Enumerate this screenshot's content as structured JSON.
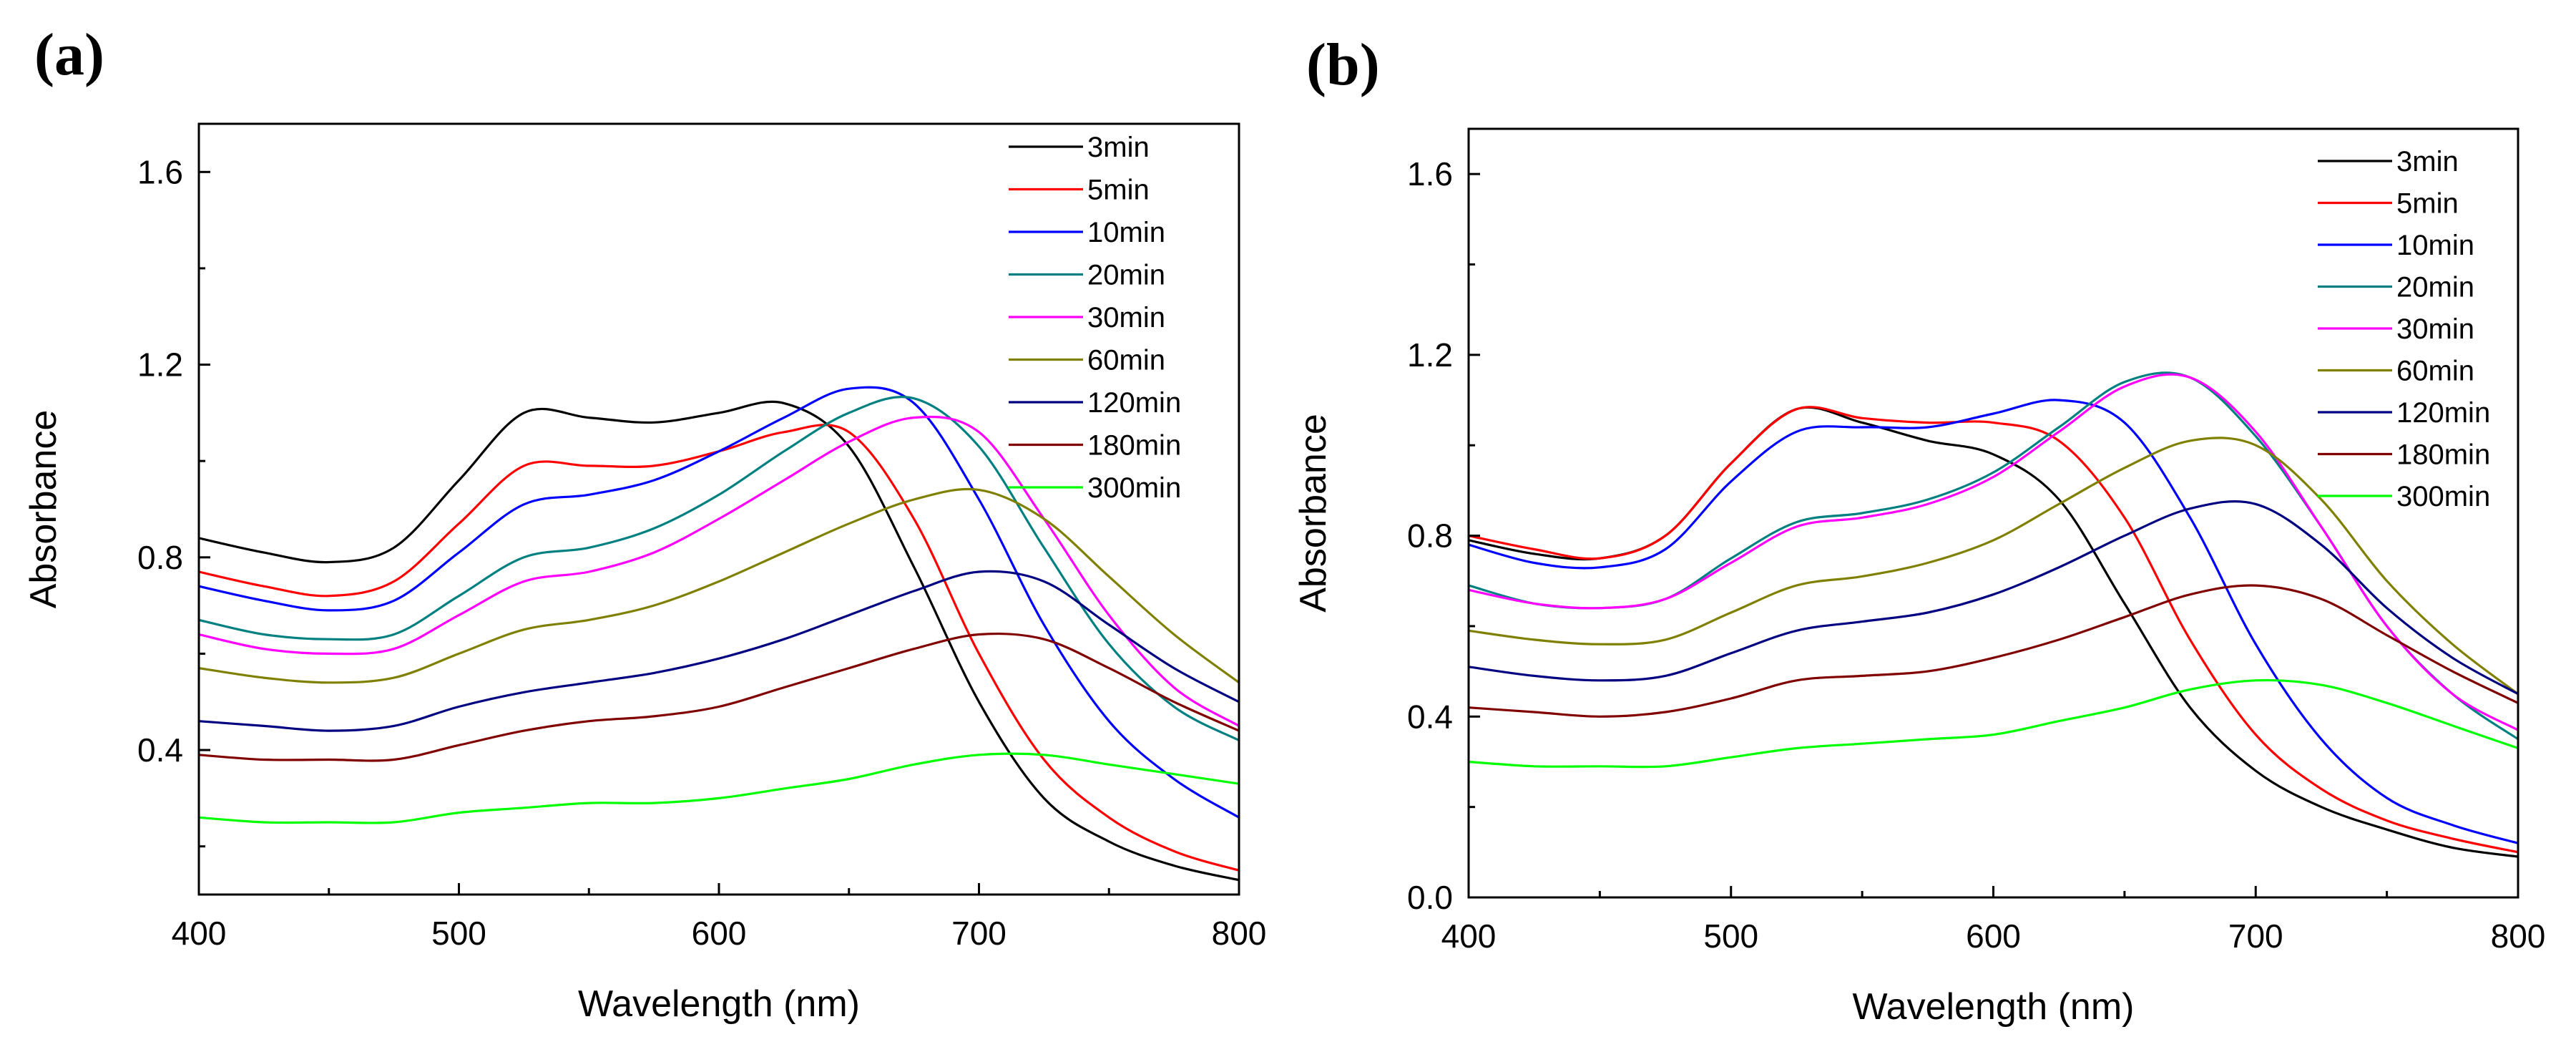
{
  "chart_data": [
    {
      "type": "line",
      "panel": "(a)",
      "xlabel": "Wavelength (nm)",
      "ylabel": "Absorbance",
      "xlim": [
        400,
        800
      ],
      "ylim": [
        0.1,
        1.7
      ],
      "xticks": [
        400,
        500,
        600,
        700,
        800
      ],
      "xtick_labels": [
        "400",
        "500",
        "600",
        "700",
        "800"
      ],
      "yticks": [
        0.4,
        0.8,
        1.2,
        1.6
      ],
      "ytick_labels": [
        "0.4",
        "0.8",
        "1.2",
        "1.6"
      ],
      "legend_position": "top-right",
      "x": [
        400,
        425,
        450,
        475,
        500,
        525,
        550,
        575,
        600,
        625,
        650,
        675,
        700,
        725,
        750,
        775,
        800
      ],
      "series": [
        {
          "name": "3min",
          "color": "#000000",
          "values": [
            0.84,
            0.81,
            0.79,
            0.82,
            0.96,
            1.1,
            1.09,
            1.08,
            1.1,
            1.12,
            1.03,
            0.78,
            0.5,
            0.3,
            0.21,
            0.16,
            0.13
          ]
        },
        {
          "name": "5min",
          "color": "#ff0000",
          "values": [
            0.77,
            0.74,
            0.72,
            0.75,
            0.87,
            0.99,
            0.99,
            0.99,
            1.02,
            1.06,
            1.06,
            0.88,
            0.6,
            0.38,
            0.26,
            0.19,
            0.15
          ]
        },
        {
          "name": "10min",
          "color": "#0000ff",
          "values": [
            0.74,
            0.71,
            0.69,
            0.71,
            0.81,
            0.91,
            0.93,
            0.96,
            1.02,
            1.09,
            1.15,
            1.12,
            0.92,
            0.66,
            0.46,
            0.34,
            0.26
          ]
        },
        {
          "name": "20min",
          "color": "#008080",
          "values": [
            0.67,
            0.64,
            0.63,
            0.64,
            0.72,
            0.8,
            0.82,
            0.86,
            0.93,
            1.02,
            1.1,
            1.13,
            1.03,
            0.82,
            0.62,
            0.49,
            0.42
          ]
        },
        {
          "name": "30min",
          "color": "#ff00ff",
          "values": [
            0.64,
            0.61,
            0.6,
            0.61,
            0.68,
            0.75,
            0.77,
            0.81,
            0.88,
            0.96,
            1.04,
            1.09,
            1.06,
            0.88,
            0.68,
            0.53,
            0.45
          ]
        },
        {
          "name": "60min",
          "color": "#808000",
          "values": [
            0.57,
            0.55,
            0.54,
            0.55,
            0.6,
            0.65,
            0.67,
            0.7,
            0.75,
            0.81,
            0.87,
            0.92,
            0.94,
            0.88,
            0.76,
            0.64,
            0.54
          ]
        },
        {
          "name": "120min",
          "color": "#000080",
          "values": [
            0.46,
            0.45,
            0.44,
            0.45,
            0.49,
            0.52,
            0.54,
            0.56,
            0.59,
            0.63,
            0.68,
            0.73,
            0.77,
            0.75,
            0.66,
            0.57,
            0.5
          ]
        },
        {
          "name": "180min",
          "color": "#800000",
          "values": [
            0.39,
            0.38,
            0.38,
            0.38,
            0.41,
            0.44,
            0.46,
            0.47,
            0.49,
            0.53,
            0.57,
            0.61,
            0.64,
            0.63,
            0.57,
            0.5,
            0.44
          ]
        },
        {
          "name": "300min",
          "color": "#00ff00",
          "values": [
            0.26,
            0.25,
            0.25,
            0.25,
            0.27,
            0.28,
            0.29,
            0.29,
            0.3,
            0.32,
            0.34,
            0.37,
            0.39,
            0.39,
            0.37,
            0.35,
            0.33
          ]
        }
      ]
    },
    {
      "type": "line",
      "panel": "(b)",
      "xlabel": "Wavelength (nm)",
      "ylabel": "Absorbance",
      "xlim": [
        400,
        800
      ],
      "ylim": [
        0.0,
        1.7
      ],
      "xticks": [
        400,
        500,
        600,
        700,
        800
      ],
      "xtick_labels": [
        "400",
        "500",
        "600",
        "700",
        "800"
      ],
      "yticks": [
        0.0,
        0.4,
        0.8,
        1.2,
        1.6
      ],
      "ytick_labels": [
        "0.0",
        "0.4",
        "0.8",
        "1.2",
        "1.6"
      ],
      "legend_position": "top-right",
      "x": [
        400,
        425,
        450,
        475,
        500,
        525,
        550,
        575,
        600,
        625,
        650,
        675,
        700,
        725,
        750,
        775,
        800
      ],
      "series": [
        {
          "name": "3min",
          "color": "#000000",
          "values": [
            0.79,
            0.76,
            0.75,
            0.8,
            0.96,
            1.08,
            1.05,
            1.01,
            0.98,
            0.88,
            0.65,
            0.42,
            0.28,
            0.2,
            0.15,
            0.11,
            0.09
          ]
        },
        {
          "name": "5min",
          "color": "#ff0000",
          "values": [
            0.8,
            0.77,
            0.75,
            0.8,
            0.96,
            1.08,
            1.06,
            1.05,
            1.05,
            1.01,
            0.84,
            0.57,
            0.36,
            0.24,
            0.17,
            0.13,
            0.1
          ]
        },
        {
          "name": "10min",
          "color": "#0000ff",
          "values": [
            0.78,
            0.74,
            0.73,
            0.77,
            0.92,
            1.03,
            1.04,
            1.04,
            1.07,
            1.1,
            1.05,
            0.84,
            0.56,
            0.35,
            0.22,
            0.16,
            0.12
          ]
        },
        {
          "name": "20min",
          "color": "#008080",
          "values": [
            0.69,
            0.65,
            0.64,
            0.66,
            0.75,
            0.83,
            0.85,
            0.88,
            0.94,
            1.04,
            1.14,
            1.15,
            1.02,
            0.82,
            0.6,
            0.45,
            0.35
          ]
        },
        {
          "name": "30min",
          "color": "#ff00ff",
          "values": [
            0.68,
            0.65,
            0.64,
            0.66,
            0.74,
            0.82,
            0.84,
            0.87,
            0.93,
            1.03,
            1.13,
            1.15,
            1.03,
            0.82,
            0.6,
            0.45,
            0.37
          ]
        },
        {
          "name": "60min",
          "color": "#808000",
          "values": [
            0.59,
            0.57,
            0.56,
            0.57,
            0.63,
            0.69,
            0.71,
            0.74,
            0.79,
            0.87,
            0.95,
            1.01,
            1.0,
            0.88,
            0.7,
            0.56,
            0.45
          ]
        },
        {
          "name": "120min",
          "color": "#000080",
          "values": [
            0.51,
            0.49,
            0.48,
            0.49,
            0.54,
            0.59,
            0.61,
            0.63,
            0.67,
            0.73,
            0.8,
            0.86,
            0.87,
            0.78,
            0.64,
            0.53,
            0.45
          ]
        },
        {
          "name": "180min",
          "color": "#800000",
          "values": [
            0.42,
            0.41,
            0.4,
            0.41,
            0.44,
            0.48,
            0.49,
            0.5,
            0.53,
            0.57,
            0.62,
            0.67,
            0.69,
            0.66,
            0.58,
            0.5,
            0.43
          ]
        },
        {
          "name": "300min",
          "color": "#00ff00",
          "values": [
            0.3,
            0.29,
            0.29,
            0.29,
            0.31,
            0.33,
            0.34,
            0.35,
            0.36,
            0.39,
            0.42,
            0.46,
            0.48,
            0.47,
            0.43,
            0.38,
            0.33
          ]
        }
      ]
    }
  ]
}
